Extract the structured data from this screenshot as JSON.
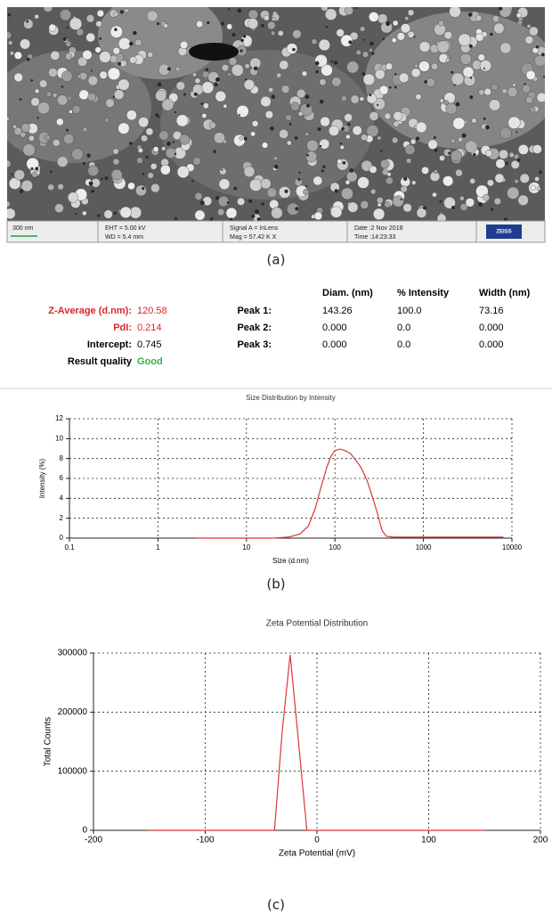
{
  "sem": {
    "scale": "300 nm",
    "eht": "EHT = 5.00 kV",
    "wd": "WD = 5.4 mm",
    "signal": "Signal A = InLens",
    "mag": "Mag = 57.42 K X",
    "date": "Date :2 Nov 2018",
    "time": "Time :14:23:33",
    "logo": "ZEISS"
  },
  "captions": [
    "(a)",
    "(b)",
    "(c)"
  ],
  "results": {
    "summary": [
      {
        "label": "Z-Average (d.nm):",
        "value": "120.58"
      },
      {
        "label": "PdI:",
        "value": "0.214"
      },
      {
        "label": "Intercept:",
        "value": "0.745"
      },
      {
        "label": "Result quality",
        "value": "Good"
      }
    ],
    "peaks": {
      "headers": [
        "Diam. (nm)",
        "% Intensity",
        "Width (nm)"
      ],
      "rows": [
        {
          "label": "Peak 1:",
          "cells": [
            "143.26",
            "100.0",
            "73.16"
          ]
        },
        {
          "label": "Peak 2:",
          "cells": [
            "0.000",
            "0.0",
            "0.000"
          ]
        },
        {
          "label": "Peak 3:",
          "cells": [
            "0.000",
            "0.0",
            "0.000"
          ]
        }
      ]
    }
  },
  "chart_data": [
    {
      "type": "line",
      "title": "Size Distribution by Intensity",
      "xlabel": "Size (d.nm)",
      "ylabel": "Intensity (%)",
      "xscale": "log",
      "xlim": [
        0.1,
        10000
      ],
      "xticks": [
        0.1,
        1,
        10,
        100,
        1000,
        10000
      ],
      "ylim": [
        0,
        12
      ],
      "yticks": [
        0,
        2,
        4,
        6,
        8,
        10,
        12
      ],
      "grid": true,
      "color": "#d9363b",
      "x": [
        2.7,
        20,
        30,
        40,
        50,
        60,
        70,
        80,
        90,
        100,
        115,
        130,
        150,
        180,
        200,
        230,
        260,
        300,
        340,
        380,
        450,
        1000,
        3000,
        8000
      ],
      "values": [
        0,
        0,
        0.1,
        0.4,
        1.2,
        3,
        5.2,
        7,
        8.2,
        8.8,
        8.95,
        8.8,
        8.5,
        7.6,
        7,
        5.8,
        4.4,
        2.6,
        0.8,
        0.2,
        0.1,
        0.1,
        0.1,
        0.1
      ]
    },
    {
      "type": "line",
      "title": "Zeta Potential Distribution",
      "xlabel": "Zeta Potential (mV)",
      "ylabel": "Total Counts",
      "xlim": [
        -200,
        200
      ],
      "xticks": [
        -200,
        -100,
        0,
        100,
        200
      ],
      "ylim": [
        0,
        300000
      ],
      "yticks": [
        0,
        100000,
        200000,
        300000
      ],
      "grid": true,
      "color": "#d9363b",
      "x": [
        -150,
        -38,
        -31,
        -24,
        -18,
        -12,
        -9,
        150
      ],
      "values": [
        0,
        0,
        170000,
        297000,
        180000,
        60000,
        0,
        0
      ]
    }
  ]
}
